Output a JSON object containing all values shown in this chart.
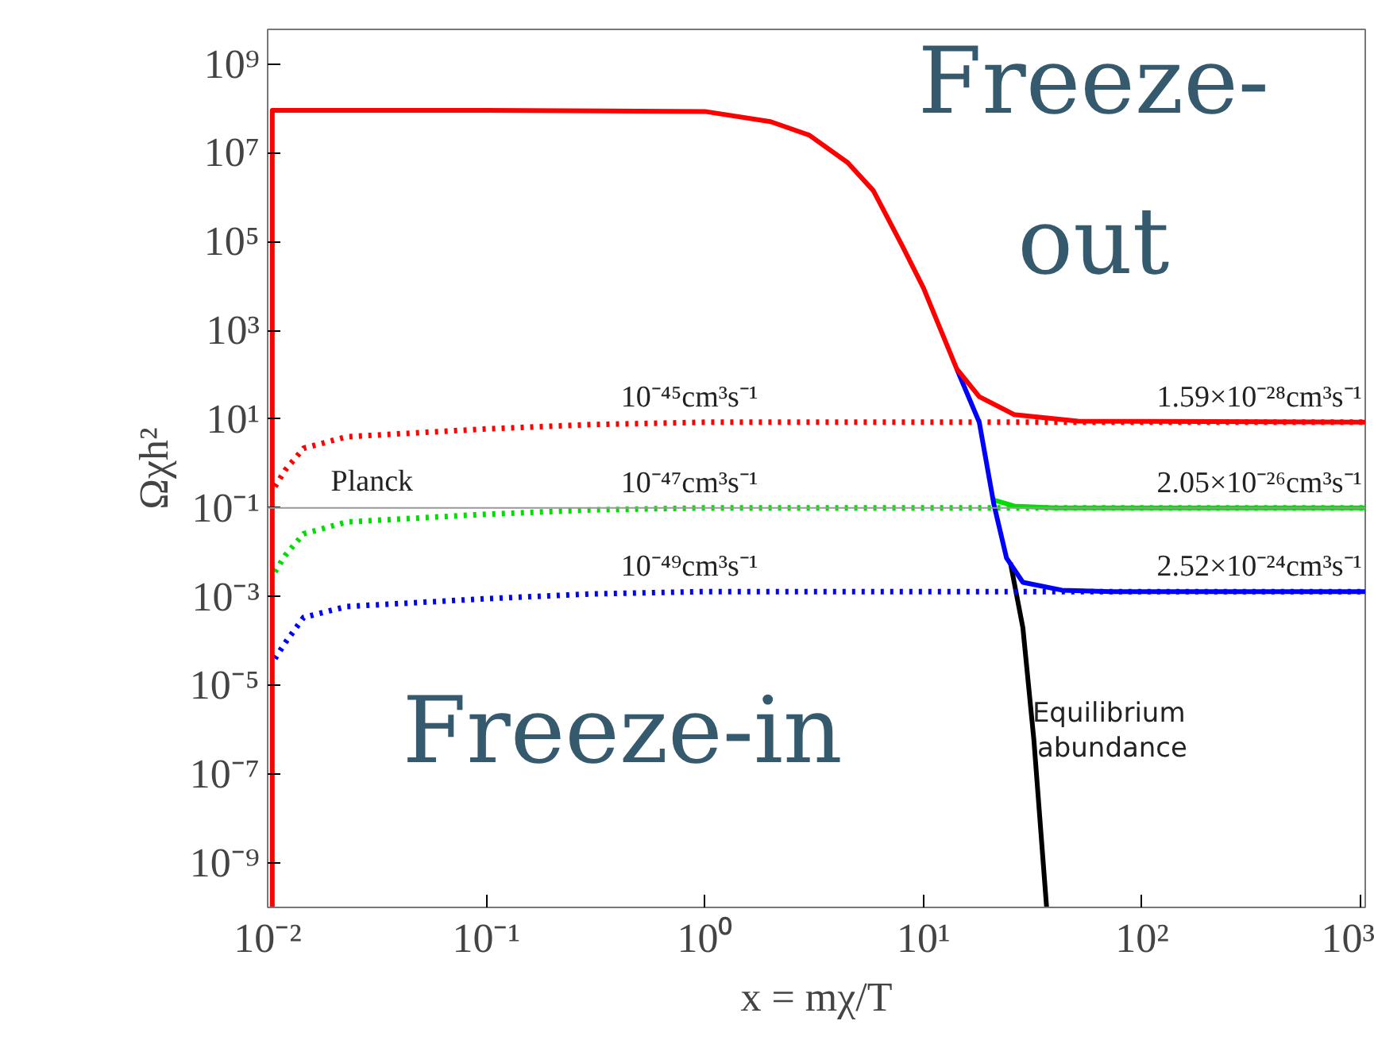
{
  "chart_data": {
    "type": "line",
    "xlabel": "x = mχ/T",
    "ylabel": "Ωχh²",
    "log": "xy",
    "grid": false,
    "xlim": [
      0.01,
      1050
    ],
    "ylim": [
      1e-10,
      6000000000.0
    ],
    "xticks": [
      {
        "value": 0.01,
        "label": "10⁻²"
      },
      {
        "value": 0.1,
        "label": "10⁻¹"
      },
      {
        "value": 1,
        "label": "10⁰"
      },
      {
        "value": 10,
        "label": "10¹"
      },
      {
        "value": 100,
        "label": "10²"
      },
      {
        "value": 1000,
        "label": "10³"
      }
    ],
    "yticks": [
      {
        "value": 1e-09,
        "label": "10⁻⁹"
      },
      {
        "value": 1e-07,
        "label": "10⁻⁷"
      },
      {
        "value": 1e-05,
        "label": "10⁻⁵"
      },
      {
        "value": 0.001,
        "label": "10⁻³"
      },
      {
        "value": 0.1,
        "label": "10⁻¹"
      },
      {
        "value": 10,
        "label": "10¹"
      },
      {
        "value": 1000,
        "label": "10³"
      },
      {
        "value": 100000,
        "label": "10⁵"
      },
      {
        "value": 10000000,
        "label": "10⁷"
      },
      {
        "value": 1000000000,
        "label": "10⁹"
      }
    ],
    "series": [
      {
        "name": "Equilibrium abundance",
        "color": "#000000",
        "line_style": "solid",
        "x": [
          25,
          28.5,
          32,
          36.6
        ],
        "values": [
          0.0058,
          0.0002,
          6e-07,
          1e-10
        ]
      },
      {
        "name": "10⁻⁴⁵cm³s⁻¹",
        "color": "#ff0000",
        "line_style": "dotted",
        "x": [
          0.0108,
          0.012,
          0.0146,
          0.023,
          0.1,
          0.3,
          1,
          1050
        ],
        "values": [
          0.3,
          0.7,
          2.2,
          4,
          6,
          7.5,
          8.5,
          8.5
        ]
      },
      {
        "name": "10⁻⁴⁷cm³s⁻¹",
        "color": "#00dd00",
        "line_style": "dotted",
        "x": [
          0.0108,
          0.012,
          0.0146,
          0.023,
          0.1,
          0.3,
          1,
          1050
        ],
        "values": [
          0.0036,
          0.0084,
          0.026,
          0.048,
          0.072,
          0.09,
          0.1,
          0.1
        ]
      },
      {
        "name": "10⁻⁴⁹cm³s⁻¹",
        "color": "#0000ff",
        "line_style": "dotted",
        "x": [
          0.0108,
          0.012,
          0.0146,
          0.023,
          0.1,
          0.3,
          1,
          1050
        ],
        "values": [
          4e-05,
          9e-05,
          0.00034,
          0.0006,
          0.0009,
          0.00115,
          0.0013,
          0.0013
        ]
      },
      {
        "name": "2.05×10⁻²⁶cm³s⁻¹",
        "color": "#00dd00",
        "line_style": "solid",
        "x": [
          21,
          26,
          40,
          1050
        ],
        "values": [
          0.15,
          0.11,
          0.1,
          0.1
        ]
      },
      {
        "name": "2.52×10⁻²⁴cm³s⁻¹",
        "color": "#0000ff",
        "line_style": "solid",
        "x": [
          14.2,
          18,
          21,
          24,
          28.5,
          43,
          72,
          1050
        ],
        "values": [
          135,
          8.5,
          0.12,
          0.0074,
          0.0021,
          0.0014,
          0.0013,
          0.0013
        ]
      },
      {
        "name": "1.59×10⁻²⁸cm³s⁻¹",
        "color": "#ff0000",
        "line_style": "solid",
        "x": [
          0.0105,
          0.0105,
          0.1,
          1,
          2,
          3,
          4.5,
          5.9,
          8,
          10,
          14.2,
          18,
          26,
          51,
          1050
        ],
        "values": [
          1e-10,
          90000000.0,
          90000000.0,
          85000000.0,
          50000000.0,
          25000000.0,
          6000000.0,
          1400000.0,
          80000.0,
          9000,
          135,
          32,
          12.6,
          9,
          8.5
        ]
      }
    ],
    "ref_lines": [
      {
        "axis": "y",
        "value": 0.1,
        "label": "Planck",
        "color": "#999999",
        "line_style": "solid"
      }
    ],
    "annotations": [
      "Freeze-out",
      "Freeze-in"
    ]
  }
}
